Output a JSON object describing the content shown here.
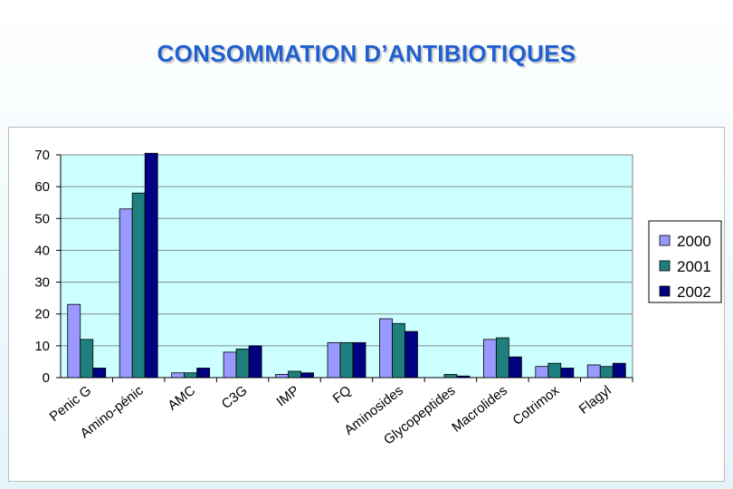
{
  "slide": {
    "title": "CONSOMMATION D’ANTIBIOTIQUES"
  },
  "chart_data": {
    "type": "bar",
    "categories": [
      "Penic G",
      "Amino-pénic",
      "AMC",
      "C3G",
      "IMP",
      "FQ",
      "Aminosides",
      "Glycopeptides",
      "Macrolides",
      "Cotrimox",
      "Flagyl"
    ],
    "series": [
      {
        "name": "2000",
        "color": "#9999ff",
        "values": [
          23,
          53,
          1.5,
          8,
          1,
          11,
          18.5,
          0,
          12,
          3.5,
          4
        ]
      },
      {
        "name": "2001",
        "color": "#1f7f7f",
        "values": [
          12,
          58,
          1.5,
          9,
          2,
          11,
          17,
          1,
          12.5,
          4.5,
          3.5
        ]
      },
      {
        "name": "2002",
        "color": "#000080",
        "values": [
          3,
          70.5,
          3,
          10,
          1.5,
          11,
          14.5,
          0.5,
          6.5,
          3,
          4.5
        ]
      }
    ],
    "yticks": [
      0,
      10,
      20,
      30,
      40,
      50,
      60,
      70
    ],
    "ylim": [
      0,
      70
    ],
    "grid": true,
    "legend": "right",
    "plot_background": "#ccffff"
  }
}
